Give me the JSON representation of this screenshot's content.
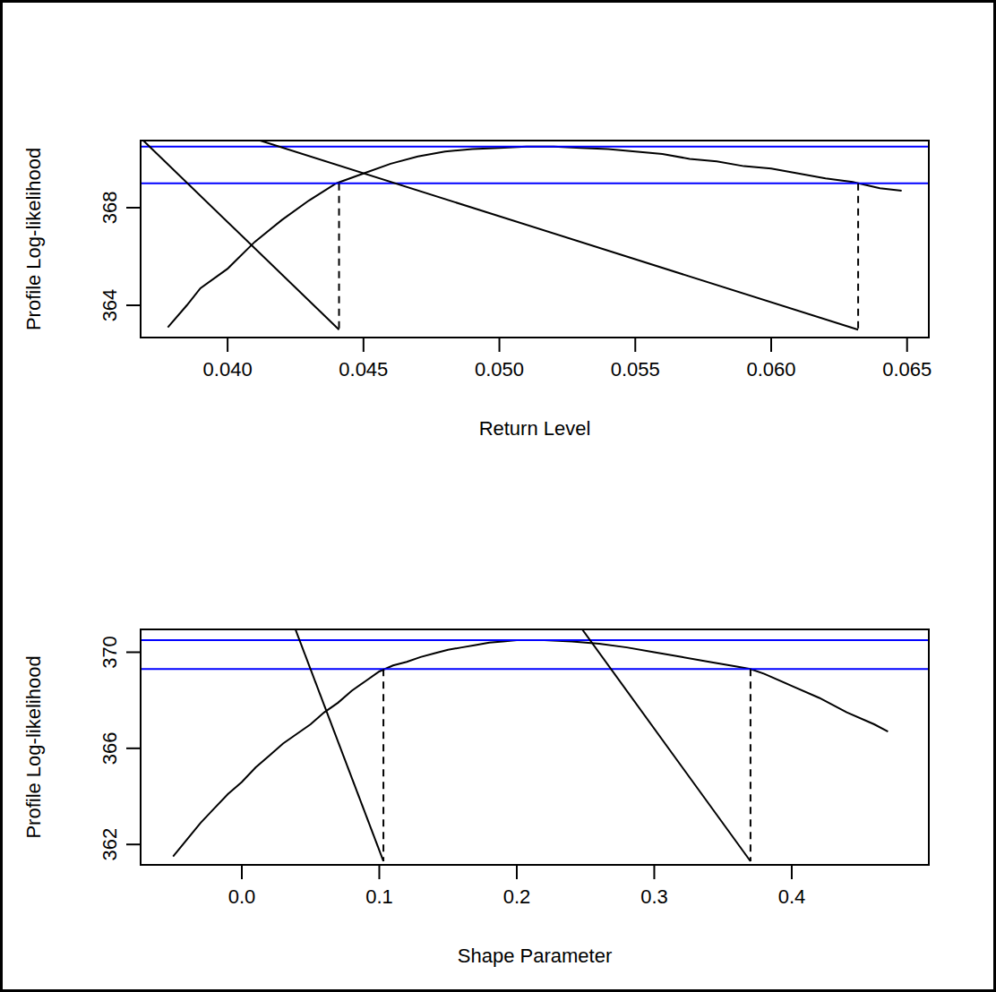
{
  "chart_data": [
    {
      "type": "line",
      "x_label": "Return Level",
      "y_label": "Profile Log-likelihood",
      "xlim": [
        0.0368,
        0.0658
      ],
      "ylim": [
        362.68,
        370.75
      ],
      "xticks": [
        {
          "value": 0.04,
          "label": "0.040"
        },
        0.045,
        {
          "value": 0.05,
          "label": "0.050"
        },
        0.055,
        {
          "value": 0.06,
          "label": "0.060"
        },
        0.065
      ],
      "yticks": [
        364,
        368
      ],
      "series": [
        {
          "type": "line",
          "color": "#000000",
          "line_style": "solid",
          "x": [
            0.0378,
            0.0385,
            0.039,
            0.04,
            0.041,
            0.042,
            0.043,
            0.044,
            0.045,
            0.046,
            0.047,
            0.048,
            0.049,
            0.05,
            0.051,
            0.052,
            0.053,
            0.054,
            0.055,
            0.056,
            0.057,
            0.058,
            0.059,
            0.06,
            0.061,
            0.062,
            0.063,
            0.064,
            0.0648
          ],
          "values": [
            363.1,
            364.0,
            364.7,
            365.5,
            366.6,
            367.5,
            368.3,
            369.0,
            369.4,
            369.8,
            370.1,
            370.3,
            370.4,
            370.45,
            370.5,
            370.5,
            370.45,
            370.4,
            370.3,
            370.2,
            370.0,
            369.9,
            369.7,
            369.6,
            369.4,
            369.2,
            369.05,
            368.8,
            368.7
          ]
        },
        {
          "type": "hline",
          "color": "#0000ff",
          "line_style": "solid",
          "values": [
            370.5
          ]
        },
        {
          "type": "hline",
          "color": "#0000ff",
          "line_style": "solid",
          "values": [
            369.0
          ]
        },
        {
          "type": "line",
          "color": "#000000",
          "line_style": "dashed",
          "x": [
            0.0441,
            0.0441
          ],
          "values": [
            369.0,
            363.0
          ]
        },
        {
          "type": "line",
          "color": "#000000",
          "line_style": "dashed",
          "x": [
            0.0632,
            0.0632
          ],
          "values": [
            369.0,
            363.0
          ]
        },
        {
          "type": "line",
          "color": "#000000",
          "line_style": "solid",
          "x": [
            0.0369,
            0.0441
          ],
          "values": [
            370.75,
            363.0
          ]
        },
        {
          "type": "line",
          "color": "#000000",
          "line_style": "solid",
          "x": [
            0.0412,
            0.0632
          ],
          "values": [
            370.75,
            363.0
          ]
        }
      ]
    },
    {
      "type": "line",
      "x_label": "Shape Parameter",
      "y_label": "Profile Log-likelihood",
      "xlim": [
        -0.0736,
        0.4997
      ],
      "ylim": [
        361.15,
        370.95
      ],
      "xticks": [
        {
          "value": 0,
          "label": "0.0"
        },
        0.1,
        0.2,
        0.3,
        0.4
      ],
      "yticks": [
        362,
        366,
        370
      ],
      "series": [
        {
          "type": "line",
          "color": "#000000",
          "line_style": "solid",
          "x": [
            -0.05,
            -0.04,
            -0.03,
            -0.02,
            -0.01,
            0.0,
            0.01,
            0.02,
            0.03,
            0.04,
            0.05,
            0.06,
            0.07,
            0.08,
            0.09,
            0.1,
            0.11,
            0.12,
            0.13,
            0.14,
            0.15,
            0.16,
            0.17,
            0.18,
            0.19,
            0.2,
            0.22,
            0.24,
            0.26,
            0.28,
            0.3,
            0.32,
            0.34,
            0.36,
            0.37,
            0.38,
            0.4,
            0.42,
            0.44,
            0.46,
            0.47
          ],
          "values": [
            361.5,
            362.2,
            362.9,
            363.5,
            364.1,
            364.6,
            365.2,
            365.7,
            366.2,
            366.6,
            367.0,
            367.5,
            367.9,
            368.4,
            368.8,
            369.2,
            369.45,
            369.6,
            369.8,
            369.95,
            370.1,
            370.2,
            370.3,
            370.4,
            370.45,
            370.5,
            370.5,
            370.45,
            370.35,
            370.2,
            370.0,
            369.8,
            369.6,
            369.4,
            369.3,
            369.1,
            368.6,
            368.1,
            367.5,
            367.0,
            366.7
          ]
        },
        {
          "type": "hline",
          "color": "#0000ff",
          "line_style": "solid",
          "values": [
            370.5
          ]
        },
        {
          "type": "hline",
          "color": "#0000ff",
          "line_style": "solid",
          "values": [
            369.3
          ]
        },
        {
          "type": "line",
          "color": "#000000",
          "line_style": "dashed",
          "x": [
            0.103,
            0.103
          ],
          "values": [
            369.3,
            361.3
          ]
        },
        {
          "type": "line",
          "color": "#000000",
          "line_style": "dashed",
          "x": [
            0.37,
            0.37
          ],
          "values": [
            369.3,
            361.3
          ]
        },
        {
          "type": "line",
          "color": "#000000",
          "line_style": "solid",
          "x": [
            0.039,
            0.103
          ],
          "values": [
            370.95,
            361.3
          ]
        },
        {
          "type": "line",
          "color": "#000000",
          "line_style": "solid",
          "x": [
            0.2476,
            0.37
          ],
          "values": [
            370.95,
            361.3
          ]
        }
      ]
    }
  ]
}
